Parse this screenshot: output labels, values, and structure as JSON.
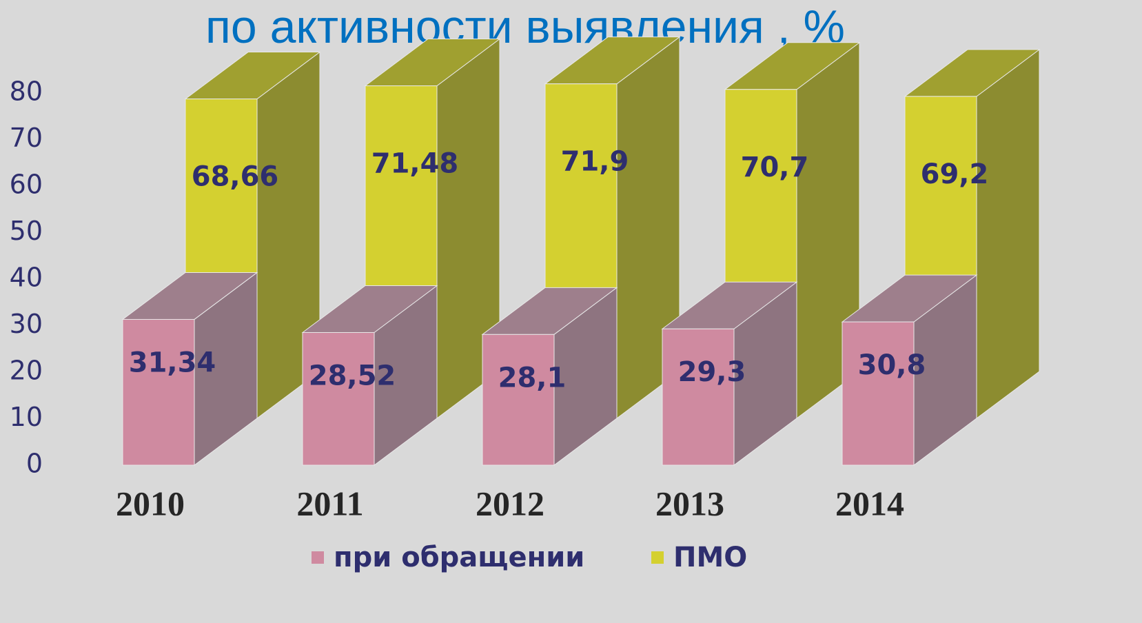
{
  "chart_data": {
    "type": "bar3d",
    "title": "по активности выявления , %",
    "categories": [
      "2010",
      "2011",
      "2012",
      "2013",
      "2014"
    ],
    "series": [
      {
        "name": "при обращении",
        "color": "#cf8aa0",
        "values": [
          31.34,
          28.52,
          28.1,
          29.3,
          30.8
        ],
        "value_labels": [
          "31,34",
          "28,52",
          "28,1",
          "29,3",
          "30,8"
        ]
      },
      {
        "name": "ПМО",
        "color": "#d4d030",
        "values": [
          68.66,
          71.48,
          71.9,
          70.7,
          69.2
        ],
        "value_labels": [
          "68,66",
          "71,48",
          "71,9",
          "70,7",
          "69,2"
        ]
      }
    ],
    "ylim": [
      0,
      80
    ],
    "yticks": [
      0,
      10,
      20,
      30,
      40,
      50,
      60,
      70,
      80
    ],
    "grid": false,
    "legend": "bottom"
  }
}
